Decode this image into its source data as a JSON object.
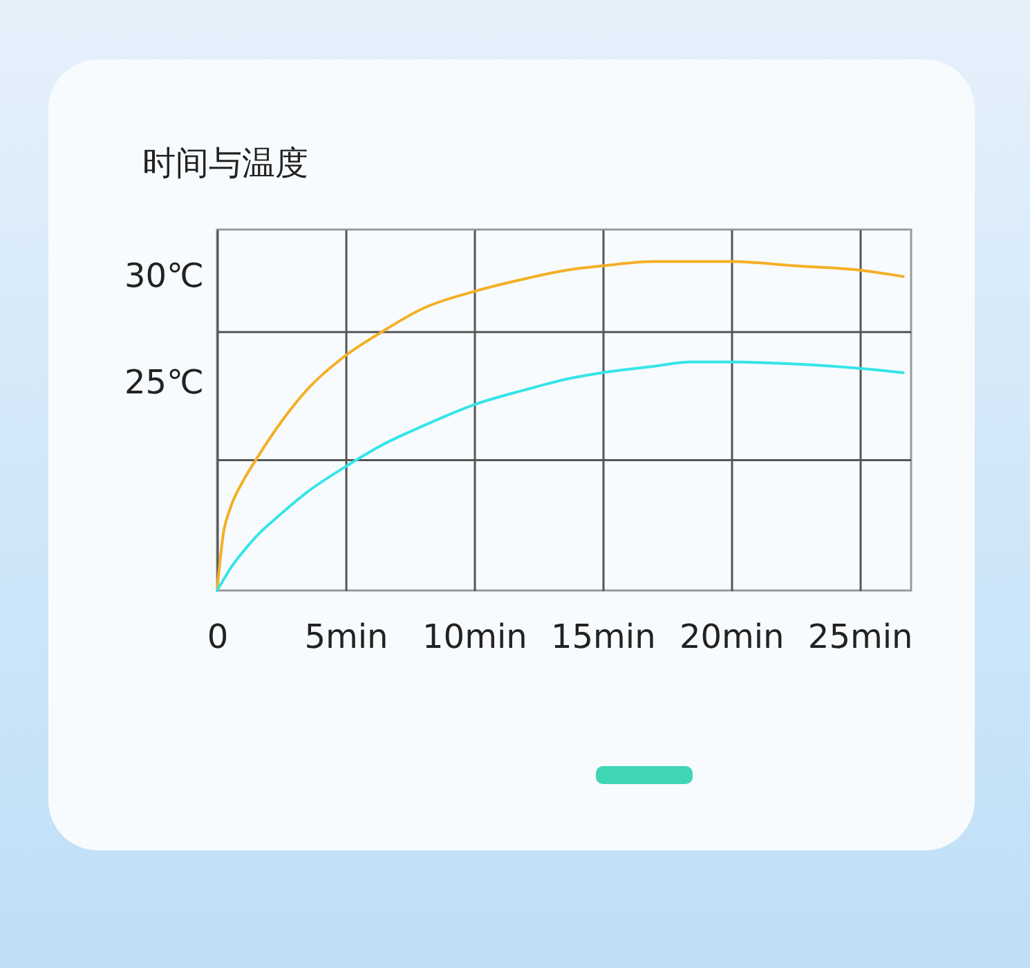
{
  "chart_data": {
    "type": "line",
    "title": "时间与温度",
    "x": [
      0,
      0.25,
      0.5,
      1,
      1.5,
      2.5,
      3.5,
      5,
      6.4,
      8,
      10,
      12,
      13.6,
      15,
      17,
      18.4,
      20,
      22.5,
      25,
      26.7
    ],
    "series": [
      {
        "color": "#f3b026",
        "values": [
          15.3,
          18.0,
          19.1,
          20.4,
          21.4,
          23.2,
          24.7,
          26.3,
          27.4,
          28.5,
          29.3,
          29.9,
          30.3,
          30.5,
          30.7,
          30.7,
          30.7,
          30.5,
          30.3,
          30.0
        ]
      },
      {
        "color": "#35e5e8",
        "values": [
          15.3,
          15.8,
          16.3,
          17.1,
          17.8,
          18.9,
          19.9,
          21.1,
          22.1,
          23.0,
          24.0,
          24.7,
          25.2,
          25.5,
          25.8,
          26.0,
          26.0,
          25.9,
          25.7,
          25.5
        ]
      }
    ],
    "xlim": [
      0,
      27
    ],
    "xticks": [
      0,
      {
        "value": 5,
        "label": "5min"
      },
      {
        "value": 10,
        "label": "10min"
      },
      {
        "value": 15,
        "label": "15min"
      },
      {
        "value": 20,
        "label": "20min"
      },
      {
        "value": 25,
        "label": "25min"
      }
    ],
    "ylim": [
      15.3,
      32.2
    ],
    "yticks": [
      {
        "value": 25,
        "label": "25℃"
      },
      {
        "value": 30,
        "label": "30℃"
      }
    ],
    "grid": "x",
    "ref_lines": [
      {
        "axis": "y",
        "value": 27.4,
        "color": "#555555"
      },
      {
        "axis": "y",
        "value": 21.4,
        "color": "#555555"
      }
    ]
  }
}
